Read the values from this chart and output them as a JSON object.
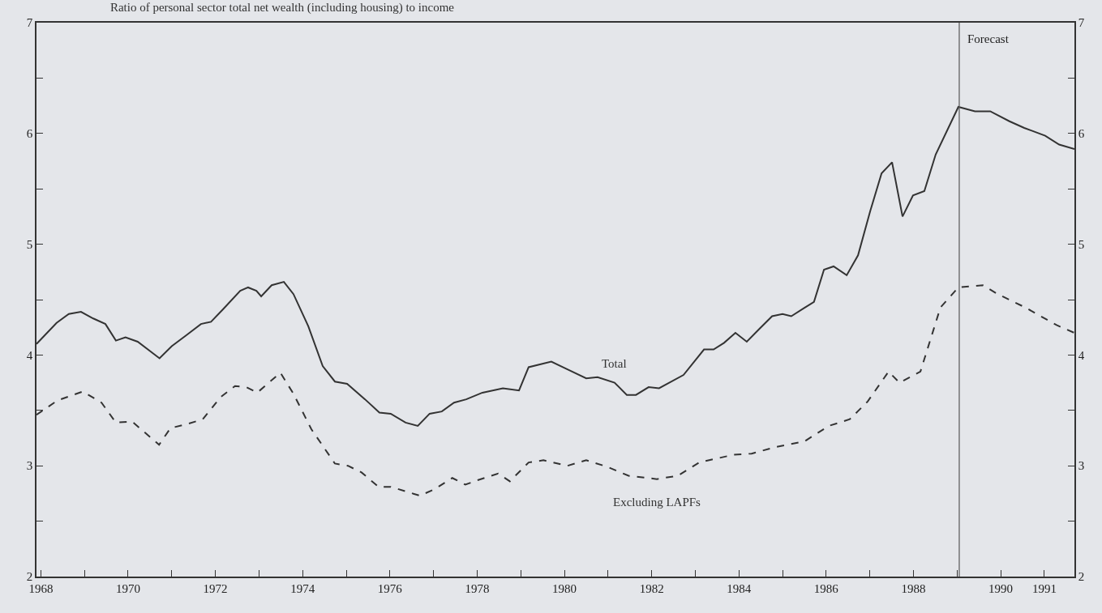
{
  "chart_data": {
    "type": "line",
    "title": "Ratio of personal sector total net wealth (including housing) to income",
    "xlim": [
      1967.9,
      1991.69
    ],
    "xticks": [
      1968,
      {
        "value": 1969,
        "label": null
      },
      1970,
      {
        "value": 1971,
        "label": null
      },
      1972,
      {
        "value": 1973,
        "label": null
      },
      1974,
      {
        "value": 1975,
        "label": null
      },
      1976,
      {
        "value": 1977,
        "label": null
      },
      1978,
      {
        "value": 1979,
        "label": null
      },
      1980,
      {
        "value": 1981,
        "label": null
      },
      1982,
      {
        "value": 1983,
        "label": null
      },
      1984,
      {
        "value": 1985,
        "label": null
      },
      1986,
      {
        "value": 1987,
        "label": null
      },
      1988,
      {
        "value": 1989,
        "label": null
      },
      1990,
      1991
    ],
    "ylim": [
      2,
      7
    ],
    "yticks": [
      2,
      {
        "value": 2.5,
        "label": null
      },
      3,
      {
        "value": 3.5,
        "label": null
      },
      4,
      {
        "value": 4.5,
        "label": null
      },
      5,
      {
        "value": 5.5,
        "label": null
      },
      6,
      {
        "value": 6.5,
        "label": null
      },
      7
    ],
    "y2lim": [
      2,
      7
    ],
    "y2ticks": [
      2,
      {
        "value": 2.5,
        "label": null
      },
      3,
      {
        "value": 3.5,
        "label": null
      },
      4,
      {
        "value": 4.5,
        "label": null
      },
      5,
      {
        "value": 5.5,
        "label": null
      },
      6,
      {
        "value": 6.5,
        "label": null
      },
      7
    ],
    "grid": false,
    "legend": false,
    "marker": "none",
    "series": [
      {
        "name": "Total",
        "color": "#333333",
        "line_style": "solid",
        "x": [
          1967.9,
          1968.36,
          1968.64,
          1968.92,
          1969.2,
          1969.48,
          1969.72,
          1969.94,
          1970.22,
          1970.72,
          1971.0,
          1971.34,
          1971.67,
          1971.9,
          1972.17,
          1972.57,
          1972.75,
          1972.94,
          1973.05,
          1973.29,
          1973.57,
          1973.79,
          1974.13,
          1974.46,
          1974.74,
          1975.02,
          1975.43,
          1975.76,
          1976.02,
          1976.36,
          1976.64,
          1976.91,
          1977.19,
          1977.47,
          1977.75,
          1978.12,
          1978.59,
          1978.96,
          1979.18,
          1979.7,
          1980.07,
          1980.5,
          1980.76,
          1981.15,
          1981.43,
          1981.64,
          1981.93,
          1982.17,
          1982.73,
          1983.2,
          1983.42,
          1983.66,
          1983.92,
          1984.18,
          1984.48,
          1984.76,
          1985.0,
          1985.2,
          1985.48,
          1985.72,
          1985.95,
          1986.17,
          1986.47,
          1986.73,
          1987.01,
          1987.27,
          1987.51,
          1987.75,
          1987.99,
          1988.25,
          1988.51,
          1989.03,
          1989.41,
          1989.76,
          1990.2,
          1990.54,
          1991.02,
          1991.34,
          1991.69
        ],
        "values": [
          4.1,
          4.29,
          4.37,
          4.39,
          4.33,
          4.28,
          4.13,
          4.16,
          4.12,
          3.97,
          4.08,
          4.18,
          4.28,
          4.3,
          4.41,
          4.58,
          4.61,
          4.58,
          4.53,
          4.63,
          4.66,
          4.55,
          4.26,
          3.9,
          3.76,
          3.74,
          3.6,
          3.48,
          3.47,
          3.39,
          3.36,
          3.47,
          3.49,
          3.57,
          3.6,
          3.66,
          3.7,
          3.68,
          3.89,
          3.94,
          3.87,
          3.79,
          3.8,
          3.75,
          3.64,
          3.64,
          3.71,
          3.7,
          3.82,
          4.05,
          4.05,
          4.11,
          4.2,
          4.12,
          4.24,
          4.35,
          4.37,
          4.35,
          4.42,
          4.48,
          4.77,
          4.8,
          4.72,
          4.9,
          5.3,
          5.64,
          5.74,
          5.25,
          5.44,
          5.48,
          5.81,
          6.24,
          6.2,
          6.2,
          6.11,
          6.05,
          5.98,
          5.9,
          5.86
        ]
      },
      {
        "name": "Excluding LAPFs",
        "color": "#333333",
        "line_style": "dashed",
        "x": [
          1967.9,
          1968.38,
          1968.96,
          1969.39,
          1969.72,
          1970.09,
          1970.71,
          1970.97,
          1971.38,
          1971.71,
          1972.12,
          1972.45,
          1972.71,
          1972.96,
          1973.49,
          1973.79,
          1974.2,
          1974.74,
          1975.04,
          1975.35,
          1975.74,
          1976.02,
          1976.69,
          1977.03,
          1977.43,
          1977.73,
          1978.01,
          1978.48,
          1978.75,
          1979.18,
          1979.52,
          1980.07,
          1980.5,
          1980.99,
          1981.47,
          1982.12,
          1982.6,
          1983.09,
          1983.88,
          1984.29,
          1984.85,
          1985.5,
          1986.06,
          1986.54,
          1986.95,
          1987.43,
          1987.68,
          1988.16,
          1988.62,
          1989.03,
          1989.59,
          1989.93,
          1990.56,
          1991.28,
          1991.69
        ],
        "values": [
          3.46,
          3.59,
          3.67,
          3.57,
          3.39,
          3.4,
          3.19,
          3.34,
          3.38,
          3.42,
          3.62,
          3.72,
          3.71,
          3.66,
          3.84,
          3.65,
          3.33,
          3.02,
          3.0,
          2.94,
          2.81,
          2.81,
          2.73,
          2.79,
          2.89,
          2.83,
          2.87,
          2.93,
          2.86,
          3.03,
          3.05,
          3.0,
          3.05,
          2.99,
          2.91,
          2.88,
          2.91,
          3.03,
          3.1,
          3.11,
          3.17,
          3.22,
          3.36,
          3.42,
          3.58,
          3.85,
          3.75,
          3.85,
          4.43,
          4.61,
          4.63,
          4.55,
          4.43,
          4.27,
          4.2
        ]
      }
    ],
    "ref_lines": [
      {
        "axis": "x",
        "value": 1989.05,
        "label": "Forecast",
        "color": "#555555",
        "line_style": "solid"
      }
    ]
  }
}
